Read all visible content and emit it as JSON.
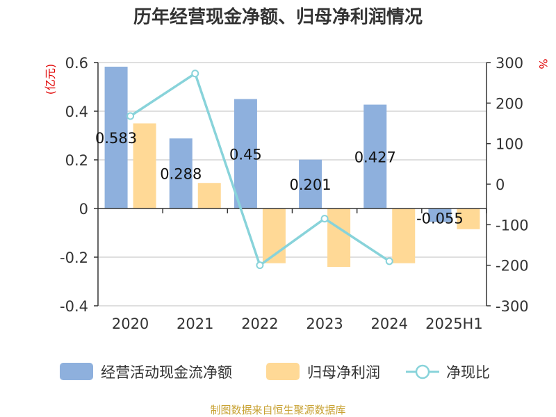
{
  "chart_data": {
    "type": "bar",
    "title": "历年经营现金净额、归母净利润情况",
    "categories": [
      "2020",
      "2021",
      "2022",
      "2023",
      "2024",
      "2025H1"
    ],
    "y_left": {
      "unit_label": "(亿元)",
      "ylim": [
        -0.4,
        0.6
      ],
      "ticks": [
        -0.4,
        -0.2,
        0,
        0.2,
        0.4,
        0.6
      ]
    },
    "y_right": {
      "unit_label": "%",
      "ylim": [
        -300,
        300
      ],
      "ticks": [
        -300,
        -200,
        -100,
        0,
        100,
        200,
        300
      ]
    },
    "grid": true,
    "legend_position": "bottom",
    "series": [
      {
        "name": "经营活动现金流净额",
        "type": "bar",
        "axis": "left",
        "color": "#8eb0dd",
        "values": [
          0.583,
          0.288,
          0.45,
          0.201,
          0.427,
          -0.055
        ],
        "labels": [
          "0.583",
          "0.288",
          "0.45",
          "0.201",
          "0.427",
          "-0.055"
        ]
      },
      {
        "name": "归母净利润",
        "type": "bar",
        "axis": "left",
        "color": "#ffd996",
        "values": [
          0.35,
          0.105,
          -0.225,
          -0.24,
          -0.225,
          -0.085
        ]
      },
      {
        "name": "净现比",
        "type": "line",
        "axis": "right",
        "color": "#88d3da",
        "values": [
          168,
          273,
          -200,
          -85,
          -190,
          null
        ]
      }
    ]
  },
  "source": "制图数据来自恒生聚源数据库"
}
